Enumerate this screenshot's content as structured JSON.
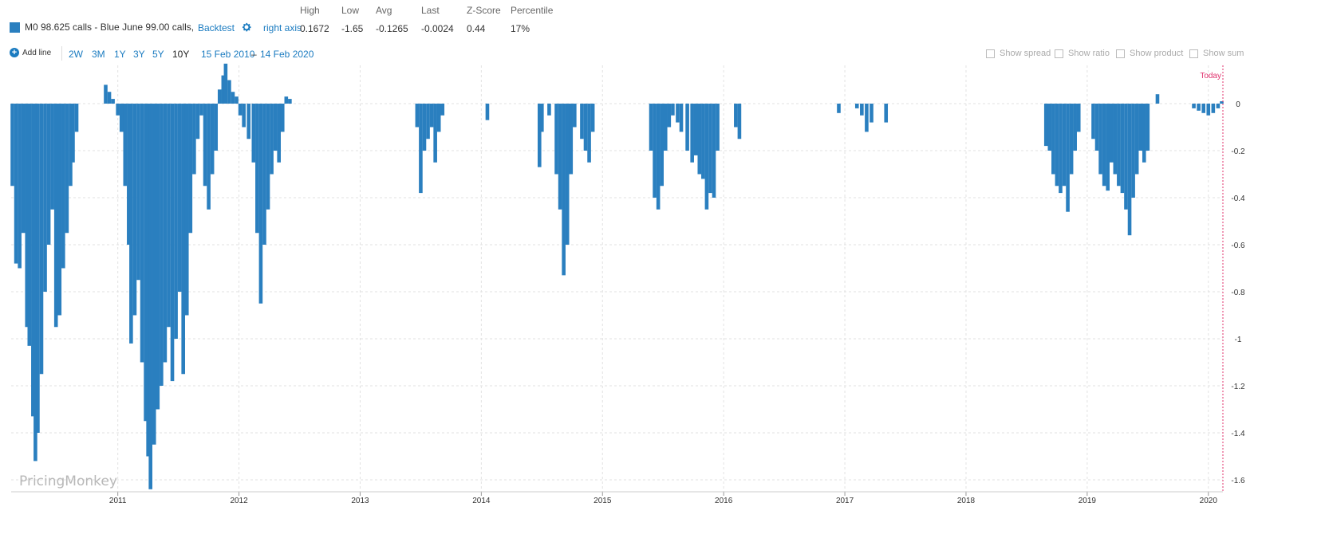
{
  "header": {
    "series_label": "M0 98.625 calls - Blue June 99.00 calls,",
    "backtest_label": "Backtest",
    "gear_icon": "gear-icon",
    "right_axis_label": "right axis",
    "stats": [
      {
        "label": "High",
        "value": "0.1672"
      },
      {
        "label": "Low",
        "value": "-1.65"
      },
      {
        "label": "Avg",
        "value": "-0.1265"
      },
      {
        "label": "Last",
        "value": "-0.0024"
      },
      {
        "label": "Z-Score",
        "value": "0.44"
      },
      {
        "label": "Percentile",
        "value": "17%"
      }
    ]
  },
  "toolbar": {
    "add_line_label": "Add line",
    "ranges": [
      "2W",
      "3M",
      "1Y",
      "3Y",
      "5Y",
      "10Y"
    ],
    "active_range": "10Y",
    "date_from": "15 Feb 2010",
    "date_sep": "–",
    "date_to": "14 Feb 2020",
    "options": [
      "Show spread",
      "Show ratio",
      "Show product",
      "Show sum"
    ]
  },
  "colors": {
    "series": "#2a7fbf",
    "today_line": "#e0336e",
    "grid": "#e2e2e2"
  },
  "watermark": "PricingMonkey",
  "today_label": "Today",
  "chart_data": {
    "type": "bar",
    "x_range": [
      2010.12,
      2020.12
    ],
    "ylim": [
      -1.65,
      0.17
    ],
    "y_ticks": [
      0,
      -0.2,
      -0.4,
      -0.6,
      -0.8,
      -1,
      -1.2,
      -1.4,
      -1.6
    ],
    "y_tick_labels": [
      "0",
      "-0.2",
      "-0.4",
      "-0.6",
      "-0.8",
      "-1",
      "-1.2",
      "-1.4",
      "-1.6"
    ],
    "x_ticks": [
      2011,
      2012,
      2013,
      2014,
      2015,
      2016,
      2017,
      2018,
      2019,
      2020
    ],
    "x_tick_labels": [
      "2011",
      "2012",
      "2013",
      "2014",
      "2015",
      "2016",
      "2017",
      "2018",
      "2019",
      "2020"
    ],
    "grid": true,
    "axis_side": "right",
    "series": [
      {
        "name": "M0 98.625 calls - Blue June 99.00 calls",
        "points": [
          [
            2010.13,
            -0.35
          ],
          [
            2010.16,
            -0.68
          ],
          [
            2010.19,
            -0.7
          ],
          [
            2010.22,
            -0.55
          ],
          [
            2010.25,
            -0.95
          ],
          [
            2010.27,
            -1.03
          ],
          [
            2010.3,
            -1.33
          ],
          [
            2010.32,
            -1.52
          ],
          [
            2010.34,
            -1.4
          ],
          [
            2010.37,
            -1.15
          ],
          [
            2010.4,
            -0.8
          ],
          [
            2010.43,
            -0.6
          ],
          [
            2010.46,
            -0.45
          ],
          [
            2010.49,
            -0.95
          ],
          [
            2010.52,
            -0.9
          ],
          [
            2010.55,
            -0.7
          ],
          [
            2010.58,
            -0.55
          ],
          [
            2010.61,
            -0.35
          ],
          [
            2010.63,
            -0.25
          ],
          [
            2010.66,
            -0.12
          ],
          [
            2010.9,
            0.08
          ],
          [
            2010.93,
            0.05
          ],
          [
            2010.96,
            0.02
          ],
          [
            2011.0,
            -0.05
          ],
          [
            2011.03,
            -0.12
          ],
          [
            2011.06,
            -0.35
          ],
          [
            2011.09,
            -0.6
          ],
          [
            2011.11,
            -1.02
          ],
          [
            2011.14,
            -0.9
          ],
          [
            2011.17,
            -0.75
          ],
          [
            2011.2,
            -1.1
          ],
          [
            2011.23,
            -1.35
          ],
          [
            2011.25,
            -1.5
          ],
          [
            2011.27,
            -1.64
          ],
          [
            2011.3,
            -1.45
          ],
          [
            2011.33,
            -1.3
          ],
          [
            2011.36,
            -1.2
          ],
          [
            2011.39,
            -1.1
          ],
          [
            2011.42,
            -0.95
          ],
          [
            2011.45,
            -1.18
          ],
          [
            2011.48,
            -1.0
          ],
          [
            2011.51,
            -0.8
          ],
          [
            2011.54,
            -1.15
          ],
          [
            2011.57,
            -0.9
          ],
          [
            2011.6,
            -0.55
          ],
          [
            2011.63,
            -0.3
          ],
          [
            2011.66,
            -0.15
          ],
          [
            2011.69,
            -0.05
          ],
          [
            2011.72,
            -0.35
          ],
          [
            2011.75,
            -0.45
          ],
          [
            2011.78,
            -0.3
          ],
          [
            2011.81,
            -0.2
          ],
          [
            2011.84,
            0.06
          ],
          [
            2011.87,
            0.12
          ],
          [
            2011.89,
            0.17
          ],
          [
            2011.92,
            0.1
          ],
          [
            2011.95,
            0.05
          ],
          [
            2011.98,
            0.03
          ],
          [
            2012.01,
            -0.05
          ],
          [
            2012.04,
            -0.1
          ],
          [
            2012.08,
            -0.15
          ],
          [
            2012.12,
            -0.25
          ],
          [
            2012.15,
            -0.55
          ],
          [
            2012.18,
            -0.85
          ],
          [
            2012.21,
            -0.6
          ],
          [
            2012.24,
            -0.45
          ],
          [
            2012.27,
            -0.3
          ],
          [
            2012.3,
            -0.2
          ],
          [
            2012.33,
            -0.25
          ],
          [
            2012.36,
            -0.12
          ],
          [
            2012.39,
            0.03
          ],
          [
            2012.42,
            0.02
          ],
          [
            2013.47,
            -0.1
          ],
          [
            2013.5,
            -0.38
          ],
          [
            2013.53,
            -0.2
          ],
          [
            2013.56,
            -0.15
          ],
          [
            2013.59,
            -0.1
          ],
          [
            2013.62,
            -0.25
          ],
          [
            2013.65,
            -0.12
          ],
          [
            2013.68,
            -0.05
          ],
          [
            2014.05,
            -0.07
          ],
          [
            2014.48,
            -0.27
          ],
          [
            2014.5,
            -0.12
          ],
          [
            2014.56,
            -0.05
          ],
          [
            2014.62,
            -0.3
          ],
          [
            2014.65,
            -0.45
          ],
          [
            2014.68,
            -0.73
          ],
          [
            2014.71,
            -0.6
          ],
          [
            2014.74,
            -0.3
          ],
          [
            2014.77,
            -0.1
          ],
          [
            2014.83,
            -0.15
          ],
          [
            2014.86,
            -0.2
          ],
          [
            2014.89,
            -0.25
          ],
          [
            2014.92,
            -0.12
          ],
          [
            2015.4,
            -0.2
          ],
          [
            2015.43,
            -0.4
          ],
          [
            2015.46,
            -0.45
          ],
          [
            2015.49,
            -0.35
          ],
          [
            2015.52,
            -0.2
          ],
          [
            2015.55,
            -0.1
          ],
          [
            2015.58,
            -0.05
          ],
          [
            2015.62,
            -0.08
          ],
          [
            2015.65,
            -0.12
          ],
          [
            2015.7,
            -0.2
          ],
          [
            2015.74,
            -0.25
          ],
          [
            2015.77,
            -0.22
          ],
          [
            2015.8,
            -0.3
          ],
          [
            2015.83,
            -0.32
          ],
          [
            2015.86,
            -0.45
          ],
          [
            2015.89,
            -0.38
          ],
          [
            2015.92,
            -0.4
          ],
          [
            2015.95,
            -0.2
          ],
          [
            2016.1,
            -0.1
          ],
          [
            2016.13,
            -0.15
          ],
          [
            2016.95,
            -0.04
          ],
          [
            2017.1,
            -0.02
          ],
          [
            2017.14,
            -0.05
          ],
          [
            2017.18,
            -0.12
          ],
          [
            2017.22,
            -0.08
          ],
          [
            2017.34,
            -0.08
          ],
          [
            2018.66,
            -0.18
          ],
          [
            2018.69,
            -0.2
          ],
          [
            2018.72,
            -0.3
          ],
          [
            2018.75,
            -0.35
          ],
          [
            2018.78,
            -0.38
          ],
          [
            2018.81,
            -0.35
          ],
          [
            2018.84,
            -0.46
          ],
          [
            2018.87,
            -0.3
          ],
          [
            2018.9,
            -0.2
          ],
          [
            2018.93,
            -0.12
          ],
          [
            2019.05,
            -0.15
          ],
          [
            2019.08,
            -0.2
          ],
          [
            2019.11,
            -0.3
          ],
          [
            2019.14,
            -0.35
          ],
          [
            2019.17,
            -0.37
          ],
          [
            2019.2,
            -0.25
          ],
          [
            2019.23,
            -0.3
          ],
          [
            2019.26,
            -0.35
          ],
          [
            2019.29,
            -0.38
          ],
          [
            2019.32,
            -0.45
          ],
          [
            2019.35,
            -0.56
          ],
          [
            2019.38,
            -0.4
          ],
          [
            2019.41,
            -0.3
          ],
          [
            2019.44,
            -0.2
          ],
          [
            2019.47,
            -0.25
          ],
          [
            2019.5,
            -0.2
          ],
          [
            2019.58,
            0.04
          ],
          [
            2019.88,
            -0.02
          ],
          [
            2019.92,
            -0.03
          ],
          [
            2019.96,
            -0.04
          ],
          [
            2020.0,
            -0.05
          ],
          [
            2020.04,
            -0.04
          ],
          [
            2020.08,
            -0.02
          ],
          [
            2020.11,
            0.01
          ]
        ]
      }
    ]
  }
}
